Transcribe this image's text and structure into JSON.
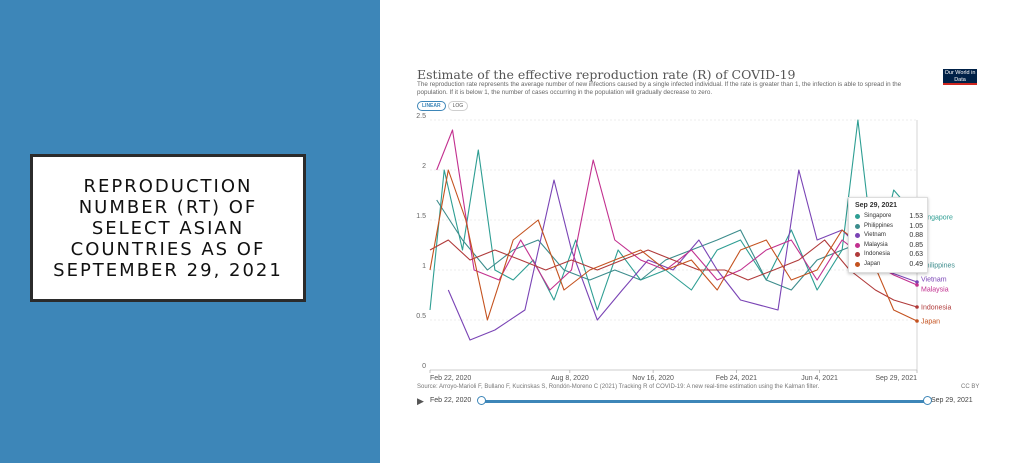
{
  "slide": {
    "title": "REPRODUCTION NUMBER (RT) OF SELECT ASIAN COUNTRIES AS OF SEPTEMBER 29, 2021",
    "left_color": "#3d86b8"
  },
  "chart": {
    "title": "Estimate of the effective reproduction rate (R) of COVID-19",
    "subtitle": "The reproduction rate represents the average number of new infections caused by a single infected individual. If the rate is greater than 1, the infection is able to spread in the population. If it is below 1, the number of cases occurring in the population will gradually decrease to zero.",
    "logo_text": "Our World in Data",
    "scale_linear": "LINEAR",
    "scale_log": "LOG",
    "source": "Source: Arroyo-Marioli F, Bullano F, Kucinskas S, Rondón-Moreno C (2021) Tracking R of COVID-19: A new real-time estimation using the Kalman filter.",
    "license": "CC BY",
    "timeline_start": "Feb 22, 2020",
    "timeline_end": "Sep 29, 2021",
    "tooltip": {
      "date": "Sep 29, 2021",
      "rows": [
        {
          "name": "Singapore",
          "value": "1.53",
          "color": "#2e9e93"
        },
        {
          "name": "Philippines",
          "value": "1.05",
          "color": "#3c8c8c"
        },
        {
          "name": "Vietnam",
          "value": "0.88",
          "color": "#7a44b5"
        },
        {
          "name": "Malaysia",
          "value": "0.85",
          "color": "#c2308f"
        },
        {
          "name": "Indonesia",
          "value": "0.63",
          "color": "#b03a3a"
        },
        {
          "name": "Japan",
          "value": "0.49",
          "color": "#c4521f"
        }
      ]
    }
  },
  "chart_data": {
    "type": "line",
    "title": "Estimate of the effective reproduction rate (R) of COVID-19",
    "x_ticks": [
      "Feb 22, 2020",
      "Aug 8, 2020",
      "Nov 16, 2020",
      "Feb 24, 2021",
      "Jun 4, 2021",
      "Sep 29, 2021"
    ],
    "y_ticks": [
      "0",
      "0.5",
      "1",
      "1.5",
      "2",
      "2.5"
    ],
    "ylim": [
      0,
      2.5
    ],
    "xlim": [
      "2020-02-22",
      "2021-09-29"
    ],
    "grid": "horizontal dashed",
    "series": [
      {
        "name": "Singapore",
        "color": "#2e9e93",
        "x": [
          "2020-02-22",
          "2020-03-10",
          "2020-04-01",
          "2020-04-20",
          "2020-05-10",
          "2020-06-01",
          "2020-06-25",
          "2020-07-20",
          "2020-08-15",
          "2020-09-10",
          "2020-10-05",
          "2020-11-01",
          "2020-12-01",
          "2021-01-01",
          "2021-02-01",
          "2021-03-01",
          "2021-04-01",
          "2021-05-01",
          "2021-06-01",
          "2021-07-01",
          "2021-07-20",
          "2021-08-10",
          "2021-09-01",
          "2021-09-29"
        ],
        "values": [
          0.6,
          2.0,
          1.2,
          2.2,
          1.0,
          0.9,
          1.1,
          0.7,
          1.3,
          0.6,
          1.2,
          0.9,
          1.0,
          0.8,
          1.2,
          1.3,
          0.9,
          1.4,
          0.8,
          1.2,
          2.5,
          1.0,
          1.8,
          1.53
        ]
      },
      {
        "name": "Philippines",
        "color": "#3c8c8c",
        "x": [
          "2020-03-01",
          "2020-04-01",
          "2020-05-01",
          "2020-06-01",
          "2020-07-01",
          "2020-08-01",
          "2020-09-01",
          "2020-10-01",
          "2020-11-01",
          "2020-12-01",
          "2021-01-01",
          "2021-02-01",
          "2021-03-01",
          "2021-04-01",
          "2021-05-01",
          "2021-06-01",
          "2021-07-01",
          "2021-08-01",
          "2021-09-01",
          "2021-09-29"
        ],
        "values": [
          1.7,
          1.3,
          1.0,
          1.2,
          1.3,
          1.0,
          0.9,
          1.0,
          0.9,
          1.1,
          1.2,
          1.3,
          1.4,
          0.9,
          0.8,
          1.1,
          1.2,
          1.3,
          1.0,
          1.05
        ]
      },
      {
        "name": "Vietnam",
        "color": "#7a44b5",
        "x": [
          "2020-03-15",
          "2020-04-10",
          "2020-05-10",
          "2020-06-15",
          "2020-07-20",
          "2020-08-10",
          "2020-09-10",
          "2020-10-10",
          "2020-11-10",
          "2020-12-10",
          "2021-01-10",
          "2021-02-01",
          "2021-03-01",
          "2021-04-15",
          "2021-05-10",
          "2021-06-01",
          "2021-07-01",
          "2021-07-25",
          "2021-08-20",
          "2021-09-29"
        ],
        "values": [
          0.8,
          0.3,
          0.4,
          0.6,
          1.9,
          1.2,
          0.5,
          0.8,
          1.1,
          1.0,
          1.3,
          1.0,
          0.7,
          0.6,
          2.0,
          1.3,
          1.4,
          1.2,
          1.0,
          0.88
        ]
      },
      {
        "name": "Malaysia",
        "color": "#c2308f",
        "x": [
          "2020-03-01",
          "2020-03-20",
          "2020-04-15",
          "2020-05-15",
          "2020-06-10",
          "2020-07-15",
          "2020-08-10",
          "2020-09-05",
          "2020-10-01",
          "2020-11-01",
          "2020-12-01",
          "2021-01-01",
          "2021-02-01",
          "2021-03-01",
          "2021-04-01",
          "2021-05-01",
          "2021-06-01",
          "2021-07-01",
          "2021-08-01",
          "2021-09-01",
          "2021-09-29"
        ],
        "values": [
          2.0,
          2.4,
          1.0,
          0.9,
          1.3,
          0.8,
          1.0,
          2.1,
          1.3,
          1.1,
          1.0,
          1.2,
          0.9,
          1.0,
          1.2,
          1.3,
          0.9,
          1.3,
          1.1,
          0.95,
          0.85
        ]
      },
      {
        "name": "Indonesia",
        "color": "#b03a3a",
        "x": [
          "2020-02-22",
          "2020-03-15",
          "2020-04-10",
          "2020-05-10",
          "2020-06-10",
          "2020-07-10",
          "2020-08-10",
          "2020-09-10",
          "2020-10-10",
          "2020-11-10",
          "2020-12-10",
          "2021-01-10",
          "2021-02-10",
          "2021-03-10",
          "2021-04-10",
          "2021-05-10",
          "2021-06-10",
          "2021-07-10",
          "2021-08-10",
          "2021-09-01",
          "2021-09-29"
        ],
        "values": [
          1.2,
          1.3,
          1.1,
          1.2,
          1.1,
          1.0,
          1.1,
          1.0,
          1.1,
          1.2,
          1.1,
          1.0,
          1.0,
          0.9,
          1.0,
          1.1,
          1.3,
          1.0,
          0.8,
          0.7,
          0.63
        ]
      },
      {
        "name": "Japan",
        "color": "#c4521f",
        "x": [
          "2020-02-22",
          "2020-03-15",
          "2020-04-05",
          "2020-05-01",
          "2020-06-01",
          "2020-07-01",
          "2020-08-01",
          "2020-09-01",
          "2020-10-01",
          "2020-11-01",
          "2020-12-01",
          "2021-01-01",
          "2021-02-01",
          "2021-03-01",
          "2021-04-01",
          "2021-05-01",
          "2021-06-01",
          "2021-07-01",
          "2021-08-01",
          "2021-09-01",
          "2021-09-29"
        ],
        "values": [
          1.0,
          2.0,
          1.5,
          0.5,
          1.3,
          1.5,
          0.8,
          1.0,
          1.1,
          1.2,
          1.0,
          1.1,
          0.8,
          1.2,
          1.3,
          0.9,
          1.0,
          1.4,
          1.2,
          0.6,
          0.49
        ]
      }
    ],
    "end_labels": [
      {
        "name": "Singapore",
        "value": 1.53
      },
      {
        "name": "Philippines",
        "value": 1.05
      },
      {
        "name": "Vietnam",
        "value": 0.88
      },
      {
        "name": "Malaysia",
        "value": 0.85
      },
      {
        "name": "Indonesia",
        "value": 0.63
      },
      {
        "name": "Japan",
        "value": 0.49
      }
    ]
  }
}
